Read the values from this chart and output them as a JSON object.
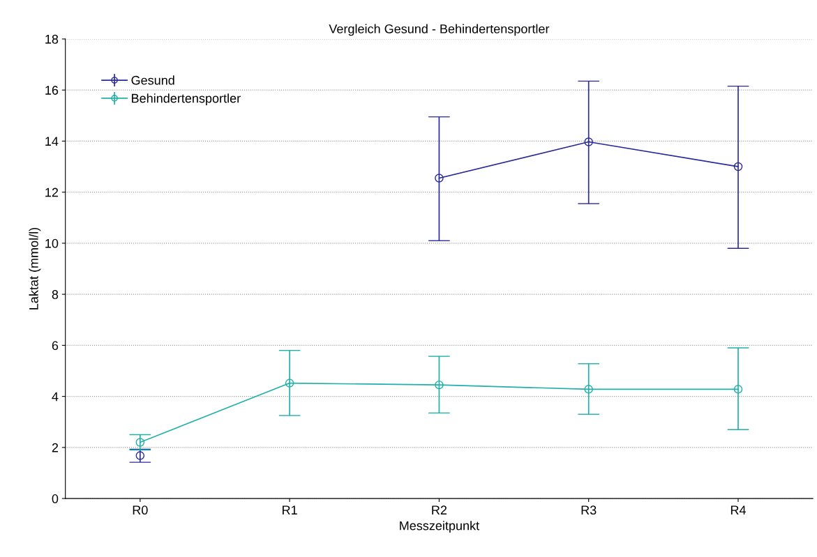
{
  "chart_data": {
    "type": "line",
    "title": "Vergleich Gesund - Behindertensportler",
    "xlabel": "Messzeitpunkt",
    "ylabel": "Laktat (mmol/l)",
    "categories": [
      "R0",
      "R1",
      "R2",
      "R3",
      "R4"
    ],
    "series": [
      {
        "name": "Gesund",
        "color": "#2a2a9a",
        "values": [
          1.68,
          null,
          12.55,
          13.97,
          13.0
        ],
        "errors": [
          [
            1.42,
            1.93
          ],
          null,
          [
            10.1,
            14.95
          ],
          [
            11.55,
            16.35
          ],
          [
            9.8,
            16.15
          ]
        ]
      },
      {
        "name": "Behindertensportler",
        "color": "#1fb0a8",
        "values": [
          2.2,
          4.52,
          4.45,
          4.28,
          4.28
        ],
        "errors": [
          [
            1.9,
            2.5
          ],
          [
            3.25,
            5.8
          ],
          [
            3.35,
            5.57
          ],
          [
            3.3,
            5.28
          ],
          [
            2.7,
            5.9
          ]
        ]
      }
    ],
    "ylim": [
      0,
      18
    ],
    "yticks": [
      0,
      2,
      4,
      6,
      8,
      10,
      12,
      14,
      16,
      18
    ],
    "grid": "y",
    "legend": "top left",
    "marker": "circle",
    "line_style": "solid"
  }
}
